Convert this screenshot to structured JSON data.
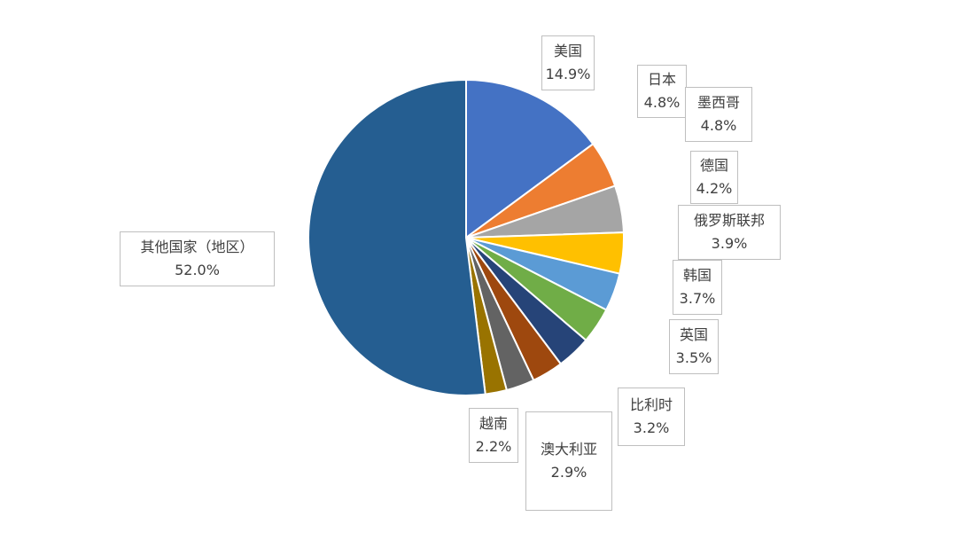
{
  "chart_data": {
    "type": "pie",
    "title": "",
    "start": "12 o'clock",
    "direction": "clockwise",
    "slices": [
      {
        "label": "美国",
        "value": 14.9,
        "value_label": "14.9%",
        "color": "#4472C4"
      },
      {
        "label": "日本",
        "value": 4.8,
        "value_label": "4.8%",
        "color": "#ED7D31"
      },
      {
        "label": "墨西哥",
        "value": 4.8,
        "value_label": "4.8%",
        "color": "#A5A5A5"
      },
      {
        "label": "德国",
        "value": 4.2,
        "value_label": "4.2%",
        "color": "#FFC000"
      },
      {
        "label": "俄罗斯联邦",
        "value": 3.9,
        "value_label": "3.9%",
        "color": "#5B9BD5"
      },
      {
        "label": "韩国",
        "value": 3.7,
        "value_label": "3.7%",
        "color": "#70AD47"
      },
      {
        "label": "英国",
        "value": 3.5,
        "value_label": "3.5%",
        "color": "#264478"
      },
      {
        "label": "比利时",
        "value": 3.2,
        "value_label": "3.2%",
        "color": "#9E480E"
      },
      {
        "label": "澳大利亚",
        "value": 2.9,
        "value_label": "2.9%",
        "color": "#636363"
      },
      {
        "label": "越南",
        "value": 2.2,
        "value_label": "2.2%",
        "color": "#997300"
      },
      {
        "label": "其他国家（地区）",
        "value": 52.0,
        "value_label": "52.0%",
        "color": "#255E91"
      }
    ],
    "label_border_color": "#BFBFBF",
    "label_text_color": "#404040"
  }
}
